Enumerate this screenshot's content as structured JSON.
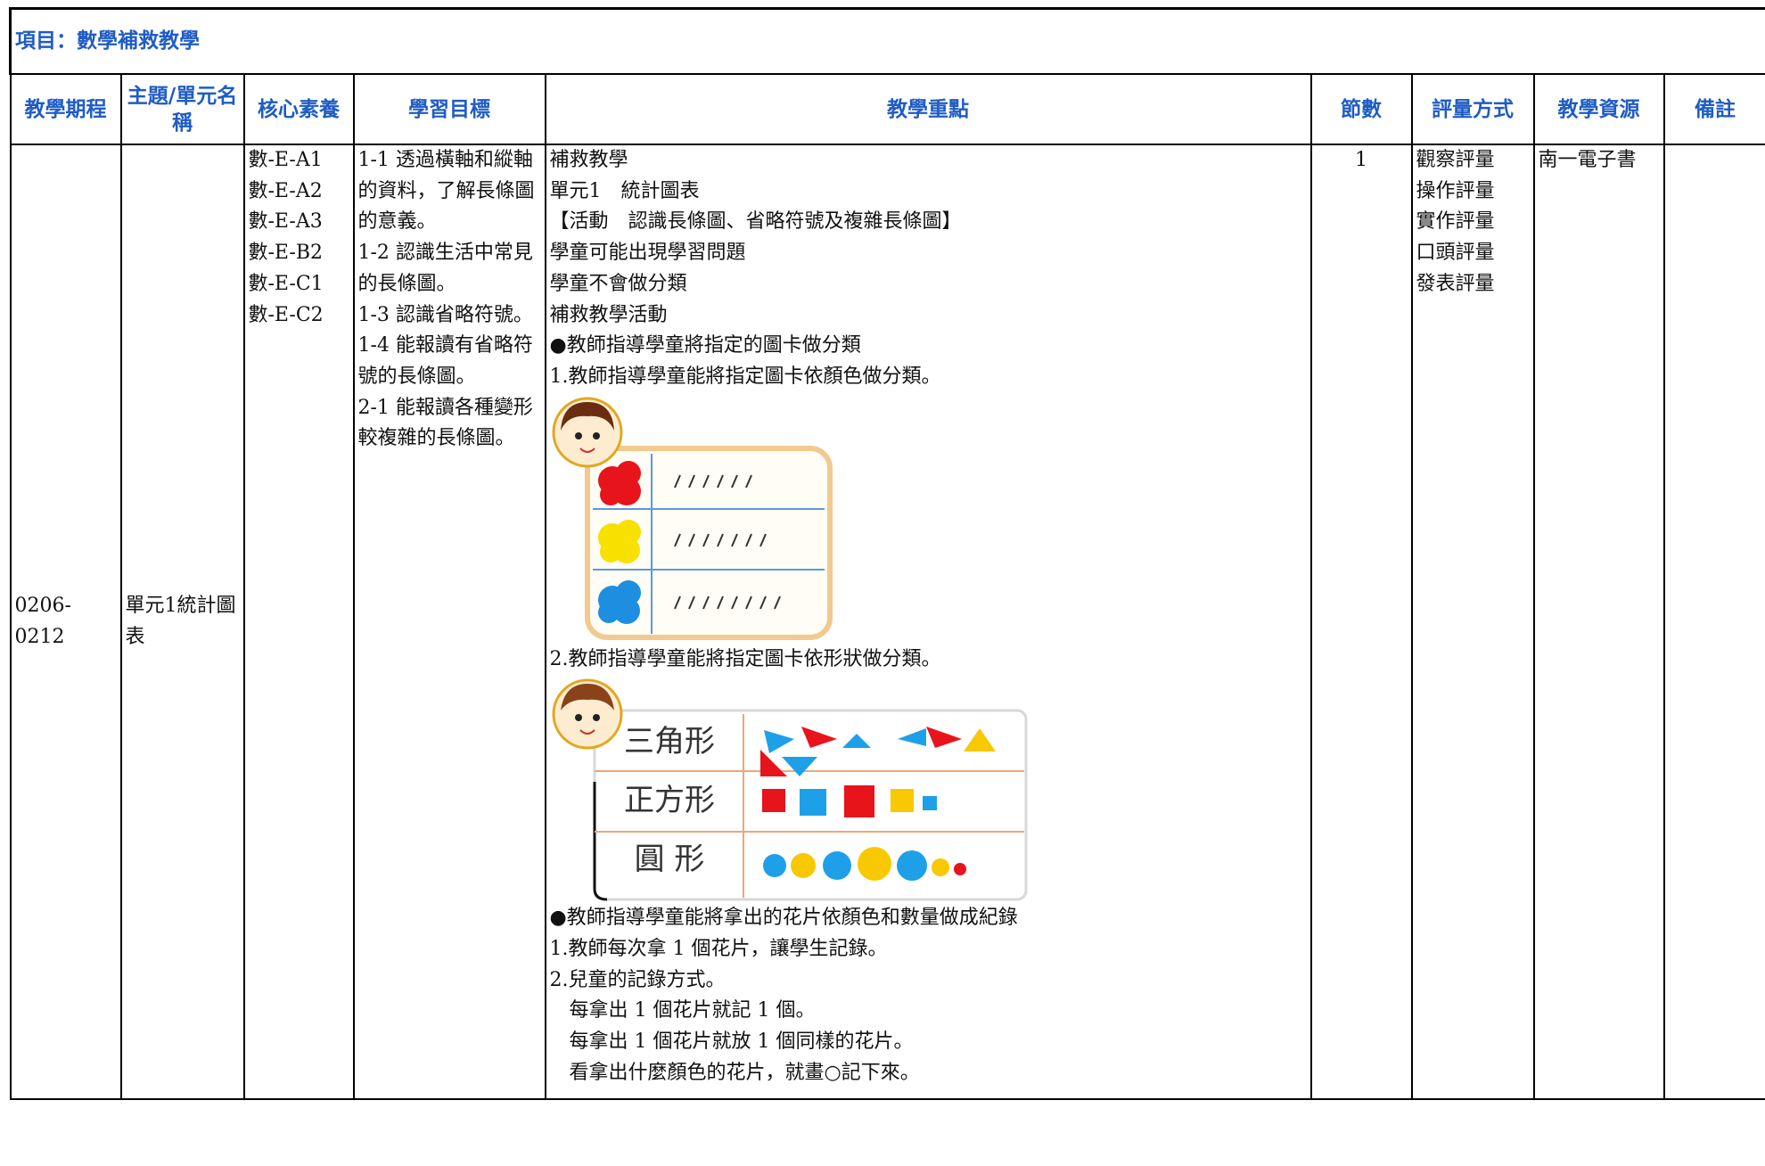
{
  "project_title": "項目：數學補救教學",
  "header": [
    "教學期程",
    "主題/單元名稱",
    "核心素養",
    "學習目標",
    "教學重點",
    "節數",
    "評量方式",
    "教學資源",
    "備註"
  ],
  "row": {
    "period": "0206-0212",
    "unit": "單元1統計圖表",
    "competencies": [
      "數-E-A1",
      "數-E-A2",
      "數-E-A3",
      "數-E-B2",
      "數-E-C1",
      "數-E-C2"
    ],
    "objectives": [
      "1-1 透過橫軸和縱軸的資料，了解長條圖的意義。",
      "1-2 認識生活中常見的長條圖。",
      "1-3 認識省略符號。",
      "1-4 能報讀有省略符號的長條圖。",
      "2-1 能報讀各種變形較複雜的長條圖。"
    ],
    "focus_part1": [
      "補救教學",
      "單元1　統計圖表",
      "【活動　認識長條圖、省略符號及複雜長條圖】",
      "學童可能出現學習問題",
      "學童不會做分類",
      "補救教學活動",
      "●教師指導學童將指定的圖卡做分類",
      "1.教師指導學童能將指定圖卡依顏色做分類。"
    ],
    "focus_part2": [
      "2.教師指導學童能將指定圖卡依形狀做分類。"
    ],
    "figure2_labels": [
      "三角形",
      "正方形",
      "圓 形"
    ],
    "focus_part3": [
      "●教師指導學童能將拿出的花片依顏色和數量做成紀錄",
      "1.教師每次拿 1 個花片，讓學生記錄。",
      "2.兒童的記錄方式。",
      "　每拿出 1 個花片就記 1 個。",
      "　每拿出 1 個花片就放 1 個同樣的花片。",
      "　看拿出什麼顏色的花片，就畫○記下來。"
    ],
    "sessions": "1",
    "assessment": [
      "觀察評量",
      "操作評量",
      "實作評量",
      "口頭評量",
      "發表評量"
    ],
    "resources": "南一電子書"
  }
}
